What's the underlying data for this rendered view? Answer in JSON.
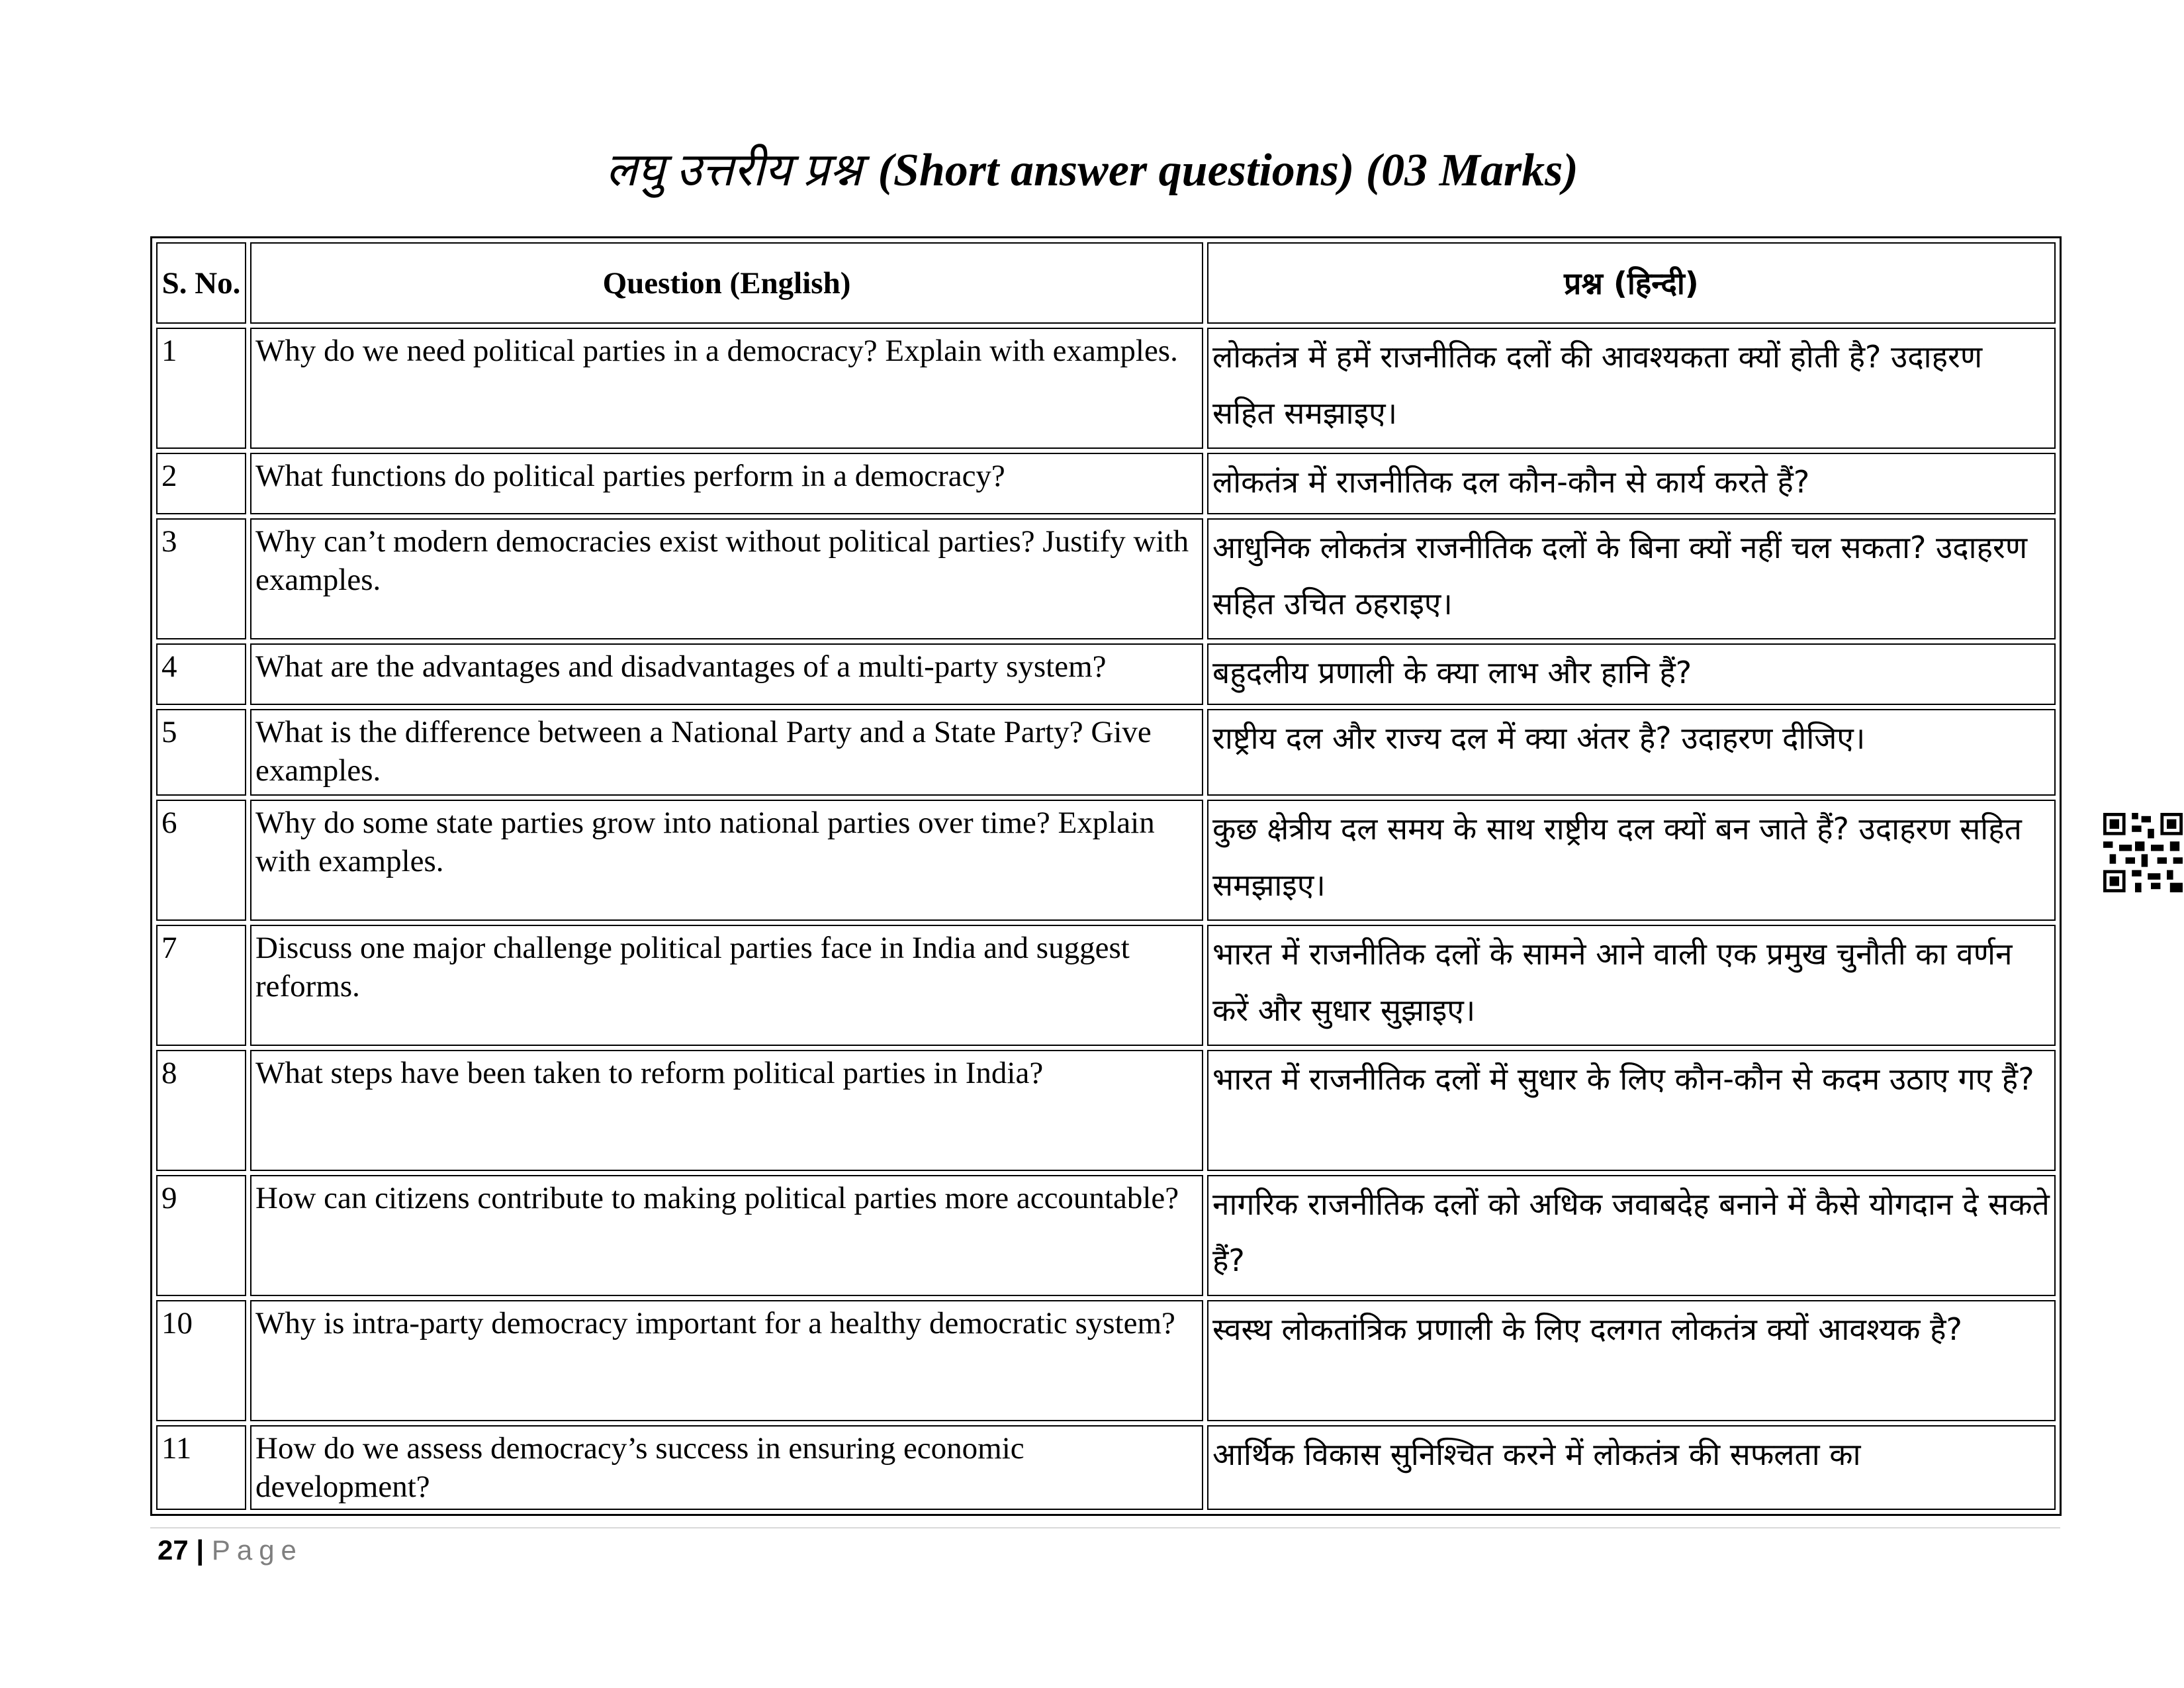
{
  "title": {
    "hindi": "लघु उत्तरीय प्रश्न",
    "english": "(Short answer questions) (03 Marks)"
  },
  "table": {
    "headers": [
      "S. No.",
      "Question (English)",
      "प्रश्न (हिन्दी)"
    ],
    "rows": [
      {
        "no": "1",
        "en": "Why do we need political parties in a democracy? Explain with examples.",
        "hi": "लोकतंत्र में हमें राजनीतिक दलों की आवश्यकता क्यों होती है? उदाहरण सहित समझाइए।"
      },
      {
        "no": "2",
        "en": "What functions do political parties perform in a democracy?",
        "hi": "लोकतंत्र में राजनीतिक दल कौन-कौन से कार्य करते हैं?"
      },
      {
        "no": "3",
        "en": "Why can’t modern democracies exist without political parties? Justify with examples.",
        "hi": "आधुनिक लोकतंत्र राजनीतिक दलों के बिना क्यों नहीं चल सकता? उदाहरण सहित उचित ठहराइए।"
      },
      {
        "no": "4",
        "en": "What are the advantages and disadvantages of a multi-party system?",
        "hi": "बहुदलीय प्रणाली के क्या लाभ और हानि हैं?"
      },
      {
        "no": "5",
        "en": "What is the difference between a National Party and a State Party? Give examples.",
        "hi": "राष्ट्रीय दल और राज्य दल में क्या अंतर है? उदाहरण दीजिए।"
      },
      {
        "no": "6",
        "en": "Why do some state parties grow into national parties over time? Explain with examples.",
        "hi": "कुछ क्षेत्रीय दल समय के साथ राष्ट्रीय दल क्यों बन जाते हैं? उदाहरण सहित समझाइए।"
      },
      {
        "no": "7",
        "en": "Discuss one major challenge political parties face in India and suggest reforms.",
        "hi": "भारत में राजनीतिक दलों के सामने आने वाली एक प्रमुख चुनौती का वर्णन करें और सुधार सुझाइए।"
      },
      {
        "no": "8",
        "en": "What steps have been taken to reform political parties in India?",
        "hi": "भारत में राजनीतिक दलों में सुधार के लिए कौन-कौन से कदम उठाए गए हैं?"
      },
      {
        "no": "9",
        "en": "How can citizens contribute to making political parties more accountable?",
        "hi": "नागरिक राजनीतिक दलों को अधिक जवाबदेह बनाने में कैसे योगदान दे सकते हैं?"
      },
      {
        "no": "10",
        "en": "Why is intra-party democracy important for a healthy democratic system?",
        "hi": "स्वस्थ लोकतांत्रिक प्रणाली के लिए दलगत लोकतंत्र क्यों आवश्यक है?"
      },
      {
        "no": "11",
        "en": "How do we assess democracy’s success in ensuring economic development?",
        "hi": "आर्थिक विकास सुनिश्चित करने में लोकतंत्र की सफलता का"
      }
    ]
  },
  "footer": {
    "page_number": "27",
    "separator": "|",
    "page_label": "Page"
  },
  "qr_icon": "qr-code-icon"
}
